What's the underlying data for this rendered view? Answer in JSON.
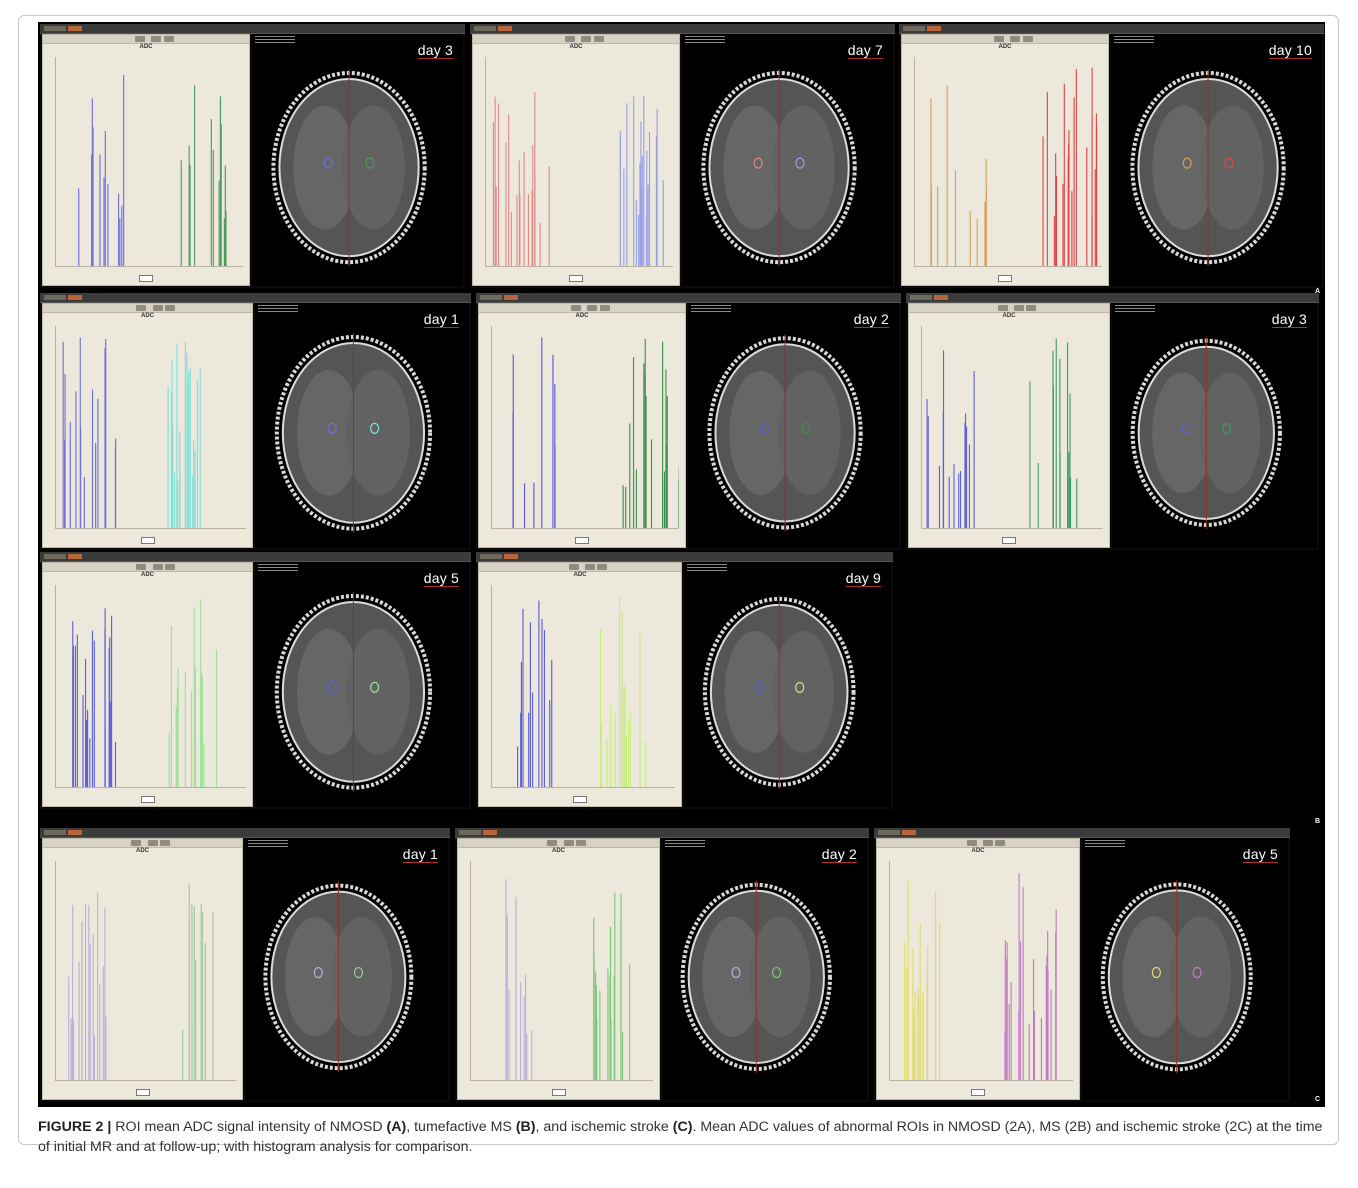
{
  "figure": {
    "group_letters": [
      "A",
      "B",
      "C"
    ],
    "panels": [
      {
        "row": 0,
        "col": 0,
        "day": "day 3",
        "histogram_title": "ADC",
        "series_colors": [
          "#6f6fe0",
          "#4f9a5f"
        ]
      },
      {
        "row": 0,
        "col": 1,
        "day": "day 7",
        "histogram_title": "ADC",
        "series_colors": [
          "#e08a8a",
          "#9aa0e8"
        ]
      },
      {
        "row": 0,
        "col": 2,
        "day": "day 10",
        "histogram_title": "ADC",
        "series_colors": [
          "#d9a15a",
          "#e04646"
        ]
      },
      {
        "row": 1,
        "col": 0,
        "day": "day 1",
        "histogram_title": "ADC",
        "series_colors": [
          "#7070d8",
          "#7fe0d8"
        ]
      },
      {
        "row": 1,
        "col": 1,
        "day": "day 2",
        "histogram_title": "ADC",
        "series_colors": [
          "#5a5ad8",
          "#3f8f4f"
        ]
      },
      {
        "row": 1,
        "col": 2,
        "day": "day 3",
        "histogram_title": "ADC",
        "series_colors": [
          "#6060d8",
          "#3c9a6a"
        ]
      },
      {
        "row": 2,
        "col": 0,
        "day": "day 5",
        "histogram_title": "ADC",
        "series_colors": [
          "#6060d8",
          "#9ae39a"
        ]
      },
      {
        "row": 2,
        "col": 1,
        "day": "day 9",
        "histogram_title": "ADC",
        "series_colors": [
          "#5a5ad8",
          "#c6ec7a"
        ]
      },
      {
        "row": 3,
        "col": 0,
        "day": "day 1",
        "histogram_title": "ADC",
        "series_colors": [
          "#b8b0d8",
          "#9bc79b"
        ]
      },
      {
        "row": 3,
        "col": 1,
        "day": "day 2",
        "histogram_title": "ADC",
        "series_colors": [
          "#b8b0e0",
          "#79c779"
        ]
      },
      {
        "row": 3,
        "col": 2,
        "day": "day 5",
        "histogram_title": "ADC",
        "series_colors": [
          "#e0dc6a",
          "#c07ac0"
        ]
      }
    ]
  },
  "caption": {
    "label": "FIGURE 2 |",
    "part1": " ROI mean ADC signal intensity of NMOSD ",
    "tagA": "(A)",
    "part2": ", tumefactive MS ",
    "tagB": "(B)",
    "part3": ", and ischemic stroke ",
    "tagC": "(C)",
    "part4": ". Mean ADC values of abnormal ROIs in NMOSD (2A), MS (2B) and ischemic stroke (2C) at the time of initial MR and at follow-up; with histogram analysis for comparison."
  }
}
